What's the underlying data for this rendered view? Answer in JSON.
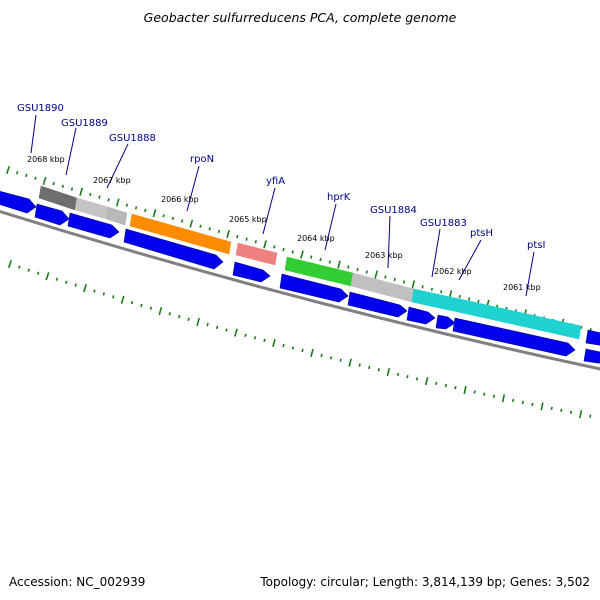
{
  "title": "Geobacter sulfurreducens PCA, complete genome",
  "footer": {
    "accession": "Accession: NC_002939",
    "summary": "Topology: circular; Length: 3,814,139 bp; Genes: 3,502"
  },
  "colors": {
    "label": "#00008b",
    "cds": "#0000ee",
    "backbone": "#808080",
    "tick": "#1a7a1a"
  },
  "scale_labels": [
    "2068 kbp",
    "2067 kbp",
    "2066 kbp",
    "2065 kbp",
    "2064 kbp",
    "2063 kbp",
    "2062 kbp",
    "2061 kbp"
  ],
  "gene_labels": [
    "GSU1890",
    "GSU1889",
    "GSU1888",
    "rpoN",
    "yfiA",
    "hprK",
    "GSU1884",
    "GSU1883",
    "ptsH",
    "ptsI"
  ],
  "gene_colors": {
    "GSU1890": "#6e6e6e",
    "GSU1889": "#c4c4c4",
    "GSU1888": "#b8b8b8",
    "rpoN": "#ff8c00",
    "yfiA": "#f08080",
    "hprK": "#32cd32",
    "GSU1884": "#c0c0c0",
    "GSU1883": "#1ed2d2",
    "ptsH": "#1ed2d2",
    "ptsI": "#1ed2d2"
  }
}
